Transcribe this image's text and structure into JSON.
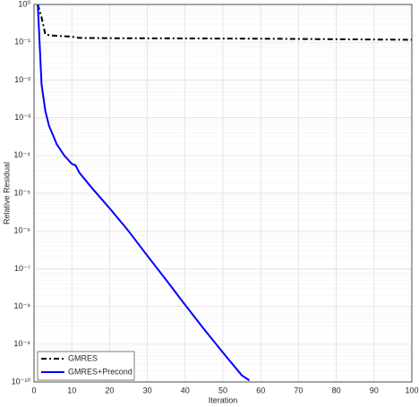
{
  "chart_data": {
    "type": "line",
    "xlabel": "Iteration",
    "ylabel": "Relative Residual",
    "log_y": true,
    "grid": true,
    "legend": "lower-left",
    "xlim": [
      0,
      100
    ],
    "xticks": [
      0,
      10,
      20,
      30,
      40,
      50,
      60,
      70,
      80,
      90,
      100
    ],
    "ylim": [
      1e-10,
      1
    ],
    "yticks": [
      {
        "value": 1,
        "label": "10⁰"
      },
      {
        "value": 0.1,
        "label": "10⁻¹"
      },
      {
        "value": 0.01,
        "label": "10⁻²"
      },
      {
        "value": 0.001,
        "label": "10⁻³"
      },
      {
        "value": 0.0001,
        "label": "10⁻⁴"
      },
      {
        "value": 1e-05,
        "label": "10⁻⁵"
      },
      {
        "value": 1e-06,
        "label": "10⁻⁶"
      },
      {
        "value": 1e-07,
        "label": "10⁻⁷"
      },
      {
        "value": 1e-08,
        "label": "10⁻⁸"
      },
      {
        "value": 1e-09,
        "label": "10⁻⁹"
      },
      {
        "value": 1e-10,
        "label": "10⁻¹⁰"
      }
    ],
    "series": [
      {
        "name": "GMRES",
        "color": "#000000",
        "dash": true,
        "x": [
          1,
          2,
          3,
          5,
          10,
          12,
          20,
          30,
          40,
          50,
          60,
          70,
          80,
          90,
          100
        ],
        "values": [
          1,
          0.45,
          0.16,
          0.15,
          0.14,
          0.13,
          0.128,
          0.127,
          0.126,
          0.125,
          0.124,
          0.122,
          0.12,
          0.118,
          0.116
        ]
      },
      {
        "name": "GMRES+Precond",
        "color": "#0000ff",
        "dash": false,
        "x": [
          1,
          2,
          3,
          4,
          5,
          6,
          8,
          10,
          11,
          12,
          15,
          20,
          25,
          30,
          35,
          40,
          45,
          50,
          55,
          57
        ],
        "values": [
          1,
          0.0075,
          0.0015,
          0.0006,
          0.00035,
          0.0002,
          0.0001,
          6e-05,
          5.5e-05,
          3.5e-05,
          1.5e-05,
          4e-06,
          1e-06,
          2.2e-07,
          5e-08,
          1.1e-08,
          2.5e-09,
          6e-10,
          1.5e-10,
          1.1e-10
        ]
      }
    ]
  }
}
